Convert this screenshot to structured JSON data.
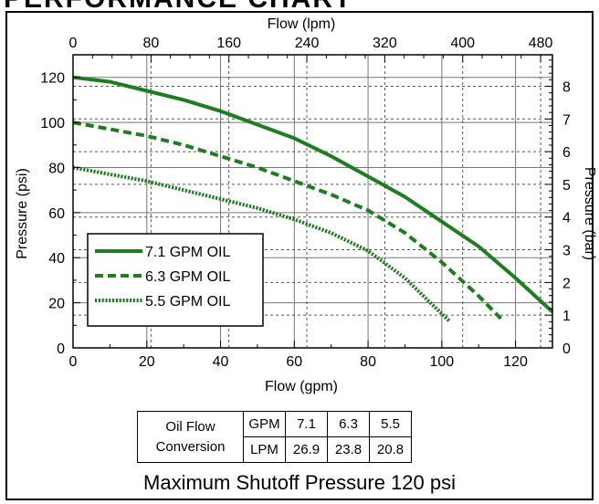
{
  "heading": "PERFORMANCE CHART",
  "chart_data": {
    "type": "line",
    "xlabel": "Flow (gpm)",
    "x_ticks": [
      0,
      20,
      40,
      60,
      80,
      100,
      120
    ],
    "xlim": [
      0,
      130
    ],
    "ylabel": "Pressure (psi)",
    "y_ticks": [
      0,
      20,
      40,
      60,
      80,
      100,
      120
    ],
    "ylim": [
      0,
      130
    ],
    "top_axis_label": "Flow (lpm)",
    "top_axis_ticks": [
      0,
      80,
      160,
      240,
      320,
      400,
      480
    ],
    "right_axis_label": "Pressure (bar)",
    "right_axis_ticks": [
      0,
      1,
      2,
      3,
      4,
      5,
      6,
      7,
      8
    ],
    "grid": true,
    "legend_position": "bottom-left",
    "series": [
      {
        "name": "7.1 GPM OIL",
        "style": "solid",
        "color": "#1e7d1e",
        "x": [
          0,
          10,
          20,
          30,
          40,
          50,
          60,
          70,
          80,
          90,
          100,
          110,
          120,
          130
        ],
        "y": [
          120,
          118,
          114,
          110,
          105,
          99,
          93,
          85,
          76,
          67,
          56,
          45,
          31,
          16
        ]
      },
      {
        "name": "6.3 GPM OIL",
        "style": "dashed",
        "color": "#1e7d1e",
        "x": [
          0,
          10,
          20,
          30,
          40,
          50,
          60,
          70,
          80,
          90,
          100,
          110,
          116
        ],
        "y": [
          100,
          97,
          94,
          90,
          85,
          80,
          74,
          68,
          61,
          51,
          38,
          23,
          13
        ]
      },
      {
        "name": "5.5 GPM OIL",
        "style": "dotted",
        "color": "#1e7d1e",
        "x": [
          0,
          10,
          20,
          30,
          40,
          50,
          60,
          70,
          80,
          90,
          95,
          102
        ],
        "y": [
          80,
          77,
          74,
          70,
          66,
          62,
          57,
          51,
          43,
          31,
          23,
          12
        ]
      }
    ]
  },
  "conversion_table": {
    "label_line1": "Oil Flow",
    "label_line2": "Conversion",
    "gpm_label": "GPM",
    "lpm_label": "LPM",
    "gpm_values": [
      "7.1",
      "6.3",
      "5.5"
    ],
    "lpm_values": [
      "26.9",
      "23.8",
      "20.8"
    ]
  },
  "footer": "Maximum Shutoff Pressure  120 psi"
}
